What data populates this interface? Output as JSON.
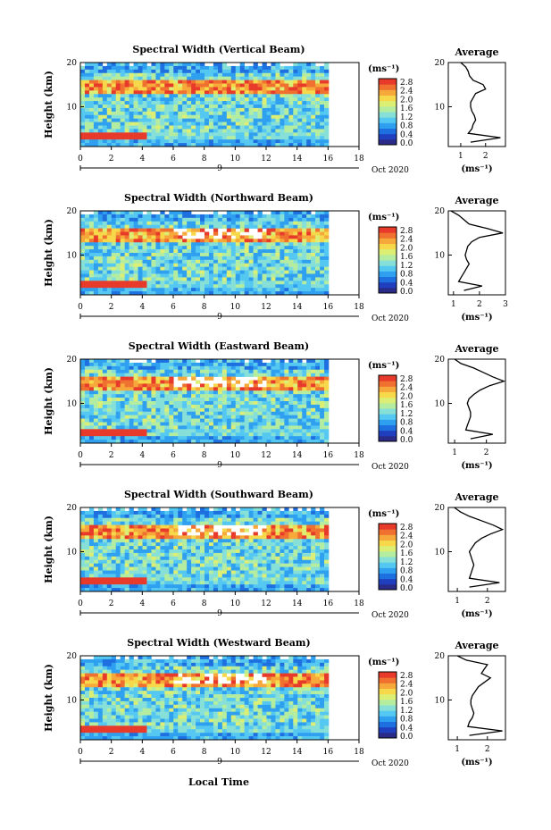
{
  "figure": {
    "x_axis_label": "Local Time",
    "date_label": "Oct 2020",
    "day_marker": "9",
    "colorbar_unit": "(ms⁻¹)",
    "avg_unit": "(ms⁻¹)",
    "colorbar_ticks": [
      "2.8",
      "2.4",
      "2.0",
      "1.6",
      "1.2",
      "0.8",
      "0.4",
      "0.0"
    ],
    "colormap": [
      "#2a2a88",
      "#1f3fbf",
      "#1e6fe0",
      "#2fa0f0",
      "#55c8f2",
      "#86e0d8",
      "#b5eda0",
      "#dcef74",
      "#f6d84a",
      "#f7a83a",
      "#f07030",
      "#e83a2a"
    ]
  },
  "chart_data": [
    {
      "type": "heatmap",
      "title": "Spectral Width (Vertical Beam)",
      "xlabel": "Local Time",
      "ylabel": "Height (km)",
      "xlim": [
        0,
        18
      ],
      "ylim": [
        1,
        20
      ],
      "x_ticks": [
        "0",
        "2",
        "4",
        "6",
        "8",
        "10",
        "12",
        "14",
        "16",
        "18"
      ],
      "y_ticks": [
        "10",
        "20"
      ],
      "colorbar": {
        "min": 0.0,
        "max": 2.8
      },
      "profile": {
        "title": "Average",
        "xlim": [
          0.5,
          2.8
        ],
        "x_ticks": [
          "1",
          "2"
        ],
        "heights": [
          2,
          3,
          4,
          5,
          6,
          7,
          8,
          9,
          10,
          11,
          12,
          13,
          14,
          15,
          16,
          17,
          18,
          19,
          20
        ],
        "values": [
          1.4,
          2.6,
          1.3,
          1.45,
          1.5,
          1.6,
          1.55,
          1.45,
          1.4,
          1.4,
          1.5,
          1.6,
          2.0,
          1.9,
          1.5,
          1.35,
          1.3,
          1.2,
          1.0
        ]
      }
    },
    {
      "type": "heatmap",
      "title": "Spectral Width (Northward Beam)",
      "xlabel": "Local Time",
      "ylabel": "Height (km)",
      "xlim": [
        0,
        18
      ],
      "ylim": [
        1,
        20
      ],
      "x_ticks": [
        "0",
        "2",
        "4",
        "6",
        "8",
        "10",
        "12",
        "14",
        "16",
        "18"
      ],
      "y_ticks": [
        "10",
        "20"
      ],
      "colorbar": {
        "min": 0.0,
        "max": 2.8
      },
      "profile": {
        "title": "Average",
        "xlim": [
          0.8,
          3.0
        ],
        "x_ticks": [
          "1",
          "2",
          "3"
        ],
        "heights": [
          2,
          3,
          4,
          5,
          6,
          7,
          8,
          9,
          10,
          11,
          12,
          13,
          14,
          15,
          16,
          17,
          18,
          19,
          20
        ],
        "values": [
          1.4,
          2.1,
          1.2,
          1.3,
          1.4,
          1.5,
          1.6,
          1.5,
          1.45,
          1.5,
          1.55,
          1.7,
          2.0,
          2.9,
          2.3,
          1.6,
          1.4,
          1.2,
          0.9
        ]
      }
    },
    {
      "type": "heatmap",
      "title": "Spectral Width (Eastward Beam)",
      "xlabel": "Local Time",
      "ylabel": "Height (km)",
      "xlim": [
        0,
        18
      ],
      "ylim": [
        1,
        20
      ],
      "x_ticks": [
        "0",
        "2",
        "4",
        "6",
        "8",
        "10",
        "12",
        "14",
        "16",
        "18"
      ],
      "y_ticks": [
        "10",
        "20"
      ],
      "colorbar": {
        "min": 0.0,
        "max": 2.8
      },
      "profile": {
        "title": "Average",
        "xlim": [
          0.8,
          2.6
        ],
        "x_ticks": [
          "1",
          "2"
        ],
        "heights": [
          2,
          3,
          4,
          5,
          6,
          7,
          8,
          9,
          10,
          11,
          12,
          13,
          14,
          15,
          16,
          17,
          18,
          19,
          20
        ],
        "values": [
          1.5,
          2.2,
          1.35,
          1.4,
          1.45,
          1.5,
          1.5,
          1.45,
          1.4,
          1.45,
          1.6,
          1.8,
          2.1,
          2.55,
          2.2,
          1.9,
          1.6,
          1.2,
          1.0
        ]
      }
    },
    {
      "type": "heatmap",
      "title": "Spectral Width (Southward Beam)",
      "xlabel": "Local Time",
      "ylabel": "Height (km)",
      "xlim": [
        0,
        18
      ],
      "ylim": [
        1,
        20
      ],
      "x_ticks": [
        "0",
        "2",
        "4",
        "6",
        "8",
        "10",
        "12",
        "14",
        "16",
        "18"
      ],
      "y_ticks": [
        "10",
        "20"
      ],
      "colorbar": {
        "min": 0.0,
        "max": 2.8
      },
      "profile": {
        "title": "Average",
        "xlim": [
          0.7,
          2.6
        ],
        "x_ticks": [
          "1",
          "2"
        ],
        "heights": [
          2,
          3,
          4,
          5,
          6,
          7,
          8,
          9,
          10,
          11,
          12,
          13,
          14,
          15,
          16,
          17,
          18,
          19,
          20
        ],
        "values": [
          1.4,
          2.4,
          1.4,
          1.45,
          1.5,
          1.55,
          1.5,
          1.45,
          1.4,
          1.5,
          1.6,
          1.8,
          2.1,
          2.5,
          2.2,
          1.8,
          1.4,
          1.1,
          0.9
        ]
      }
    },
    {
      "type": "heatmap",
      "title": "Spectral Width (Westward Beam)",
      "xlabel": "Local Time",
      "ylabel": "Height (km)",
      "xlim": [
        0,
        18
      ],
      "ylim": [
        1,
        20
      ],
      "x_ticks": [
        "0",
        "2",
        "4",
        "6",
        "8",
        "10",
        "12",
        "14",
        "16",
        "18"
      ],
      "y_ticks": [
        "10",
        "20"
      ],
      "colorbar": {
        "min": 0.0,
        "max": 2.8
      },
      "profile": {
        "title": "Average",
        "xlim": [
          0.7,
          2.6
        ],
        "x_ticks": [
          "1",
          "2"
        ],
        "heights": [
          2,
          3,
          4,
          5,
          6,
          7,
          8,
          9,
          10,
          11,
          12,
          13,
          14,
          15,
          16,
          17,
          18,
          19,
          20
        ],
        "values": [
          1.4,
          2.5,
          1.35,
          1.4,
          1.5,
          1.55,
          1.5,
          1.45,
          1.45,
          1.5,
          1.6,
          1.7,
          1.9,
          2.1,
          1.8,
          1.9,
          2.0,
          1.3,
          1.0
        ]
      }
    }
  ]
}
